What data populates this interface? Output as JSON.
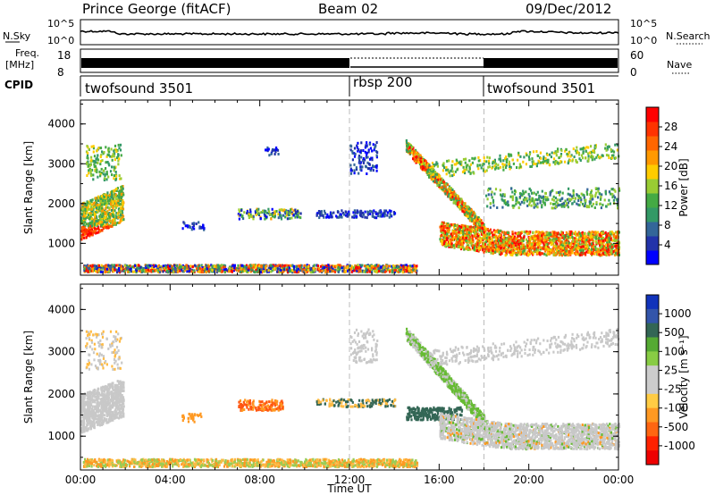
{
  "header": {
    "station": "Prince George (fitACF)",
    "beam": "Beam 02",
    "date": "09/Dec/2012"
  },
  "top_panel": {
    "left_label": "N.Sky",
    "left_tick_top": "10^5",
    "left_tick_bottom": "10^0",
    "right_label": "N.Search",
    "right_tick_top": "10^5",
    "right_tick_bottom": "10^0"
  },
  "freq_panel": {
    "label_line1": "Freq.",
    "label_line2": "[MHz]",
    "tick_top": "18",
    "tick_bottom": "8",
    "right_label": "Nave",
    "right_tick_top": "60",
    "right_tick_bottom": "0"
  },
  "cpid_panel": {
    "label": "CPID",
    "modes": [
      "twofsound 3501",
      "rbsp 200",
      "twofsound 3501"
    ],
    "mode_times": [
      0,
      12,
      18
    ]
  },
  "chart_data": [
    {
      "type": "heatmap",
      "name": "power",
      "ylabel": "Slant Range [km]",
      "xlabel": "",
      "ylim": [
        200,
        4600
      ],
      "yticks": [
        1000,
        2000,
        3000,
        4000
      ],
      "colorbar_label": "Power [dB]",
      "colorbar_ticks": [
        "4",
        "8",
        "12",
        "16",
        "20",
        "24",
        "28"
      ],
      "colorbar_colors": [
        "#0000ff",
        "#2233aa",
        "#336699",
        "#339966",
        "#44aa44",
        "#99cc33",
        "#ffcc00",
        "#ff9900",
        "#ff6600",
        "#ff3300",
        "#ff0000"
      ]
    },
    {
      "type": "heatmap",
      "name": "velocity",
      "ylabel": "Slant Range [km]",
      "xlabel": "Time UT",
      "ylim": [
        200,
        4600
      ],
      "yticks": [
        1000,
        2000,
        3000,
        4000
      ],
      "xticks": [
        "00:00",
        "04:00",
        "08:00",
        "12:00",
        "16:00",
        "20:00",
        "00:00"
      ],
      "colorbar_label": "Velocity [m s⁻¹]",
      "colorbar_ticks": [
        "1000",
        "500",
        "100",
        "25",
        "-25",
        "-100",
        "-500",
        "-1000"
      ],
      "colorbar_colors": [
        "#1133bb",
        "#3355aa",
        "#336655",
        "#55aa33",
        "#88cc44",
        "#cccccc",
        "#cccccc",
        "#ffcc44",
        "#ff9922",
        "#ff6611",
        "#ff2200",
        "#ee0000"
      ]
    }
  ]
}
